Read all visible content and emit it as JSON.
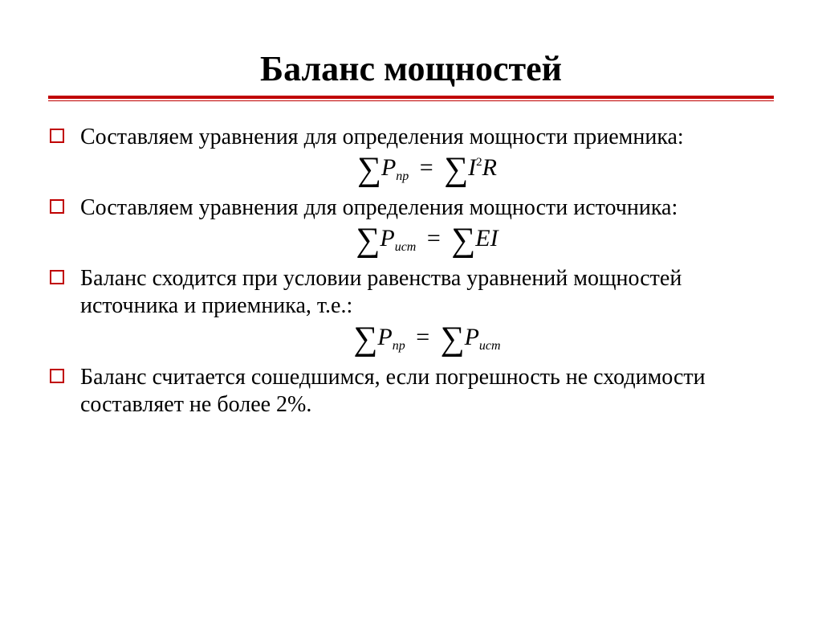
{
  "slide": {
    "title": "Баланс мощностей",
    "accent_color": "#c00000",
    "background_color": "#ffffff",
    "text_color": "#000000",
    "title_fontsize": 44,
    "body_fontsize": 28,
    "formula_fontsize": 30,
    "sigma_fontsize": 42,
    "bullets": [
      {
        "text": "Составляем уравнения для определения мощности приемника:",
        "formula": {
          "lhs_var": "P",
          "lhs_sub": "пр",
          "rhs_type": "I2R",
          "rhs_var1": "I",
          "rhs_sup": "2",
          "rhs_var2": "R"
        }
      },
      {
        "text": "Составляем уравнения для определения мощности источника:",
        "formula": {
          "lhs_var": "P",
          "lhs_sub": "ист",
          "rhs_type": "EI",
          "rhs_var1": "E",
          "rhs_var2": "I"
        }
      },
      {
        "text": "Баланс сходится при условии равенства уравнений мощностей источника и приемника, т.е.:",
        "formula": {
          "lhs_var": "P",
          "lhs_sub": "пр",
          "rhs_type": "sumP",
          "rhs_var": "P",
          "rhs_sub": "ист"
        }
      },
      {
        "text": "Баланс считается сошедшимся, если погрешность не сходимости составляет не более 2%."
      }
    ]
  }
}
